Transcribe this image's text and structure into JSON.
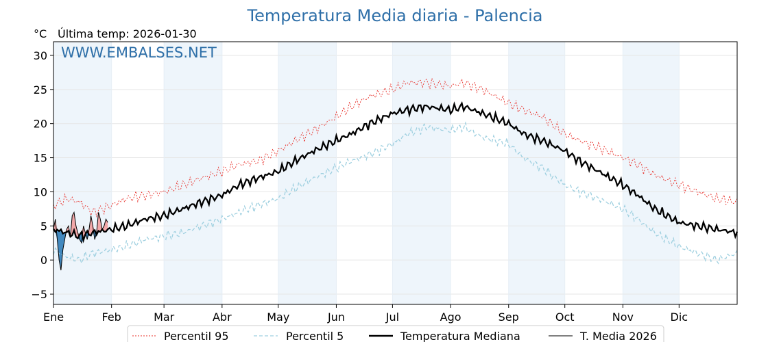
{
  "header": {
    "title": "Temperatura Media diaria - Palencia",
    "unit": "°C",
    "last_temp": "Última temp: 2026-01-30",
    "watermark": "WWW.EMBALSES.NET"
  },
  "legend": {
    "p95": "Percentil 95",
    "p5": "Percentil 5",
    "median": "Temperatura Mediana",
    "current": "T. Media 2026"
  },
  "colors": {
    "p95": "#e8302a",
    "p5": "#9fd0e0",
    "median": "#000000",
    "current": "#000000",
    "fill_above": "#f2a0a0",
    "fill_below": "#2f7db8",
    "band": "#eef5fb"
  },
  "chart_data": {
    "type": "line",
    "x_unit": "day_of_year",
    "xlim": [
      1,
      366
    ],
    "ylim": [
      -6.5,
      32
    ],
    "y_ticks": [
      -5,
      0,
      5,
      10,
      15,
      20,
      25,
      30
    ],
    "month_labels": [
      "Ene",
      "Feb",
      "Mar",
      "Abr",
      "May",
      "Jun",
      "Jul",
      "Ago",
      "Sep",
      "Oct",
      "Nov",
      "Dic"
    ],
    "month_starts": [
      1,
      32,
      60,
      91,
      121,
      152,
      182,
      213,
      244,
      274,
      305,
      335
    ],
    "grid": true,
    "legend_position": "bottom",
    "series_keys": {
      "p95": {
        "x": [
          1,
          8,
          15,
          22,
          32,
          40,
          50,
          60,
          70,
          80,
          91,
          100,
          110,
          121,
          130,
          140,
          152,
          160,
          170,
          182,
          190,
          200,
          213,
          220,
          230,
          244,
          252,
          262,
          274,
          282,
          292,
          305,
          313,
          322,
          335,
          345,
          355,
          366
        ],
        "y": [
          8,
          9,
          8.5,
          7,
          8,
          9,
          9.5,
          10,
          11,
          12,
          13,
          14,
          14.5,
          16,
          17.5,
          19,
          21,
          22.5,
          24,
          25,
          26,
          26,
          25.5,
          26,
          25,
          23,
          22,
          21,
          18.5,
          17.5,
          16.5,
          15,
          14,
          12.5,
          11,
          10,
          9,
          8.5
        ]
      },
      "p5": {
        "x": [
          1,
          8,
          15,
          22,
          32,
          40,
          50,
          60,
          70,
          80,
          91,
          100,
          110,
          121,
          130,
          140,
          152,
          160,
          170,
          182,
          190,
          200,
          213,
          220,
          230,
          244,
          252,
          262,
          274,
          282,
          292,
          305,
          313,
          322,
          335,
          345,
          355,
          366
        ],
        "y": [
          1.5,
          0.5,
          0,
          1,
          1.5,
          2,
          3,
          3.5,
          4,
          5,
          6,
          7,
          8,
          9,
          10.5,
          12,
          13.5,
          14.5,
          15.5,
          17,
          18.5,
          19.5,
          19,
          19.5,
          18,
          17,
          15,
          13.5,
          11,
          10,
          9,
          7.5,
          6,
          4,
          2,
          1,
          0,
          1
        ]
      },
      "median": {
        "x": [
          1,
          8,
          15,
          22,
          32,
          40,
          50,
          60,
          70,
          80,
          91,
          100,
          110,
          121,
          130,
          140,
          152,
          160,
          170,
          182,
          190,
          200,
          213,
          220,
          230,
          244,
          252,
          262,
          274,
          282,
          292,
          305,
          313,
          322,
          335,
          345,
          355,
          366
        ],
        "y": [
          4.5,
          4,
          3.5,
          4,
          4.5,
          5,
          6,
          6.5,
          7.5,
          8.5,
          9.5,
          11,
          12,
          13,
          14.5,
          16,
          17.5,
          18.5,
          20,
          21.5,
          22,
          22.5,
          22,
          22.5,
          21.5,
          20,
          18.5,
          17.5,
          16,
          14.5,
          13,
          11,
          9.5,
          7.5,
          5.5,
          5,
          4.5,
          4
        ]
      },
      "current": {
        "x": [
          1,
          2,
          3,
          4,
          5,
          6,
          7,
          8,
          9,
          10,
          11,
          12,
          13,
          14,
          15,
          16,
          17,
          18,
          19,
          20,
          21,
          22,
          23,
          24,
          25,
          26,
          27,
          28,
          29,
          30
        ],
        "y": [
          4.5,
          6,
          3,
          0,
          -1.5,
          1.5,
          3,
          4.5,
          5,
          3.5,
          6.5,
          7,
          5,
          4,
          3,
          2.5,
          5,
          4,
          3,
          4.5,
          6.5,
          5,
          3,
          4,
          7,
          6,
          4.5,
          5,
          6,
          5.5
        ]
      }
    },
    "series": [
      {
        "name": "Percentil 95",
        "key": "p95"
      },
      {
        "name": "Percentil 5",
        "key": "p5"
      },
      {
        "name": "Temperatura Mediana",
        "key": "median"
      },
      {
        "name": "T. Media 2026",
        "key": "current"
      }
    ]
  }
}
